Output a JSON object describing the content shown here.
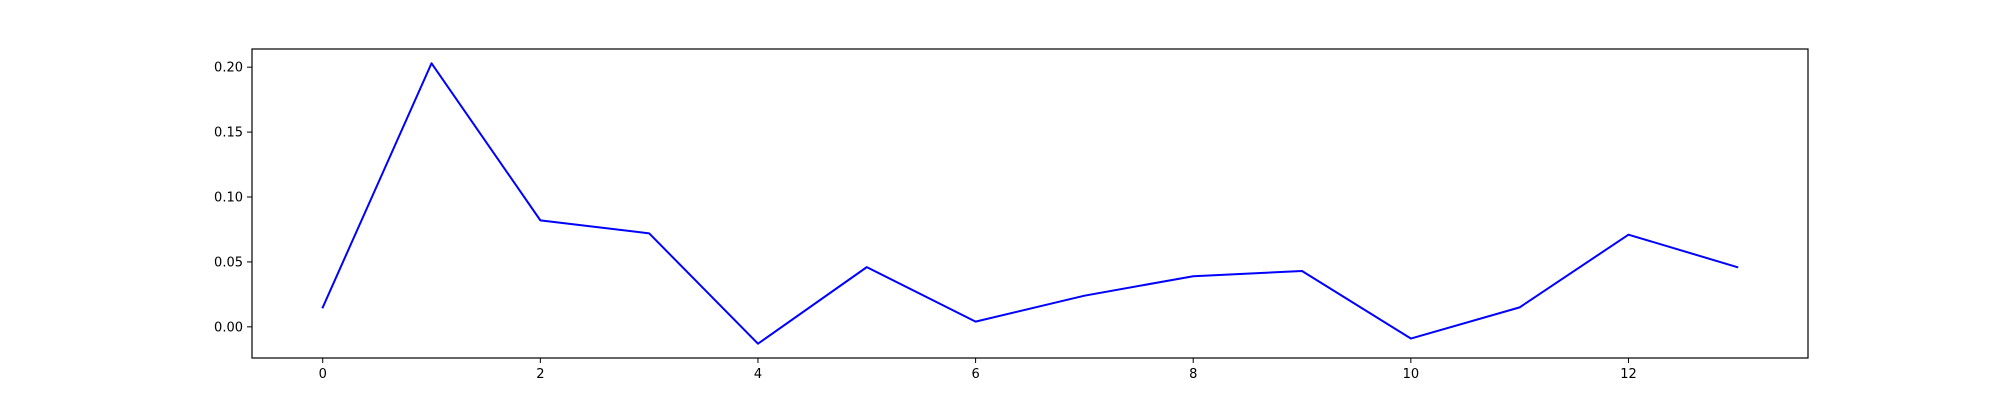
{
  "chart_data": {
    "type": "line",
    "x": [
      0,
      1,
      2,
      3,
      4,
      5,
      6,
      7,
      8,
      9,
      10,
      11,
      12,
      13
    ],
    "series": [
      {
        "color": "#0000ff",
        "values": [
          0.015,
          0.203,
          0.082,
          0.072,
          -0.013,
          0.046,
          0.004,
          0.024,
          0.039,
          0.043,
          -0.009,
          0.015,
          0.071,
          0.046
        ]
      }
    ],
    "xlim": [
      -0.65,
      13.65
    ],
    "ylim": [
      -0.024,
      0.214
    ],
    "xticks": [
      0,
      2,
      4,
      6,
      8,
      10,
      12
    ],
    "xtick_labels": [
      "0",
      "2",
      "4",
      "6",
      "8",
      "10",
      "12"
    ],
    "yticks": [
      0.0,
      0.05,
      0.1,
      0.15,
      0.2
    ],
    "ytick_labels": [
      "0.00",
      "0.05",
      "0.10",
      "0.15",
      "0.20"
    ],
    "grid": false,
    "legend": "none",
    "title": "",
    "xlabel": "",
    "ylabel": ""
  }
}
